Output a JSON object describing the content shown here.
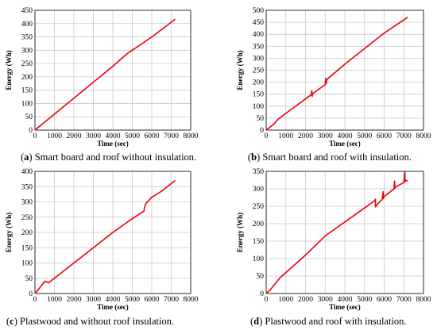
{
  "line_color": "#e8000b",
  "chart_data": [
    {
      "type": "line",
      "id": "a",
      "xlabel": "Time (sec)",
      "ylabel": "Energy (Wh)",
      "xlim": [
        0,
        8000
      ],
      "ylim": [
        0,
        450
      ],
      "xticks": [
        0,
        1000,
        2000,
        3000,
        4000,
        5000,
        6000,
        7000,
        8000
      ],
      "yticks": [
        0,
        50,
        100,
        150,
        200,
        250,
        300,
        350,
        400,
        450
      ],
      "grid": true,
      "series": [
        {
          "x": [
            0,
            500,
            1000,
            2000,
            3000,
            4000,
            4700,
            5000,
            6000,
            7000,
            7200
          ],
          "y": [
            0,
            30,
            60,
            120,
            180,
            240,
            285,
            300,
            350,
            405,
            417
          ]
        }
      ],
      "caption_letter": "a",
      "caption_text": "Smart board and roof without insulation."
    },
    {
      "type": "line",
      "id": "b",
      "xlabel": "Time (sec)",
      "ylabel": "Energy (Wh)",
      "xlim": [
        0,
        8000
      ],
      "ylim": [
        0,
        500
      ],
      "xticks": [
        0,
        1000,
        2000,
        3000,
        4000,
        5000,
        6000,
        7000,
        8000
      ],
      "yticks": [
        0,
        50,
        100,
        150,
        200,
        250,
        300,
        350,
        400,
        450,
        500
      ],
      "grid": true,
      "series": [
        {
          "x": [
            0,
            400,
            600,
            1000,
            2000,
            2300,
            2320,
            2340,
            2360,
            3000,
            3030,
            3060,
            3090,
            3500,
            4000,
            5000,
            6000,
            7000,
            7200
          ],
          "y": [
            0,
            25,
            45,
            70,
            130,
            148,
            165,
            140,
            152,
            190,
            215,
            195,
            212,
            240,
            275,
            340,
            405,
            460,
            472
          ]
        }
      ],
      "caption_letter": "b",
      "caption_text": "Smart board and roof with insulation."
    },
    {
      "type": "line",
      "id": "c",
      "xlabel": "Time (sec)",
      "ylabel": "Energy (Wh)",
      "xlim": [
        0,
        8000
      ],
      "ylim": [
        0,
        400
      ],
      "xticks": [
        0,
        1000,
        2000,
        3000,
        4000,
        5000,
        6000,
        7000,
        8000
      ],
      "yticks": [
        0,
        50,
        100,
        150,
        200,
        250,
        300,
        350,
        400
      ],
      "grid": true,
      "series": [
        {
          "x": [
            0,
            200,
            500,
            700,
            1000,
            2000,
            3000,
            4000,
            5000,
            5600,
            5620,
            5700,
            6000,
            6500,
            7000,
            7200
          ],
          "y": [
            0,
            15,
            40,
            35,
            50,
            100,
            150,
            200,
            245,
            270,
            280,
            295,
            315,
            335,
            360,
            370
          ]
        }
      ],
      "caption_letter": "c",
      "caption_text": "Plastwood and without roof insulation."
    },
    {
      "type": "line",
      "id": "d",
      "xlabel": "Time (sec)",
      "ylabel": "Energy (Wh)",
      "xlim": [
        0,
        8000
      ],
      "ylim": [
        0,
        350
      ],
      "xticks": [
        0,
        1000,
        2000,
        3000,
        4000,
        5000,
        6000,
        7000,
        8000
      ],
      "yticks": [
        0,
        50,
        100,
        150,
        200,
        250,
        300,
        350
      ],
      "grid": true,
      "series": [
        {
          "x": [
            0,
            200,
            700,
            1000,
            2000,
            3000,
            3500,
            4000,
            5000,
            5500,
            5550,
            5560,
            5600,
            5900,
            5950,
            5960,
            6000,
            6500,
            6530,
            6540,
            6600,
            7000,
            7050,
            7060,
            7100,
            7200
          ],
          "y": [
            0,
            10,
            45,
            60,
            110,
            165,
            185,
            205,
            245,
            265,
            270,
            248,
            252,
            270,
            292,
            272,
            278,
            300,
            322,
            302,
            306,
            318,
            350,
            320,
            324,
            322
          ]
        }
      ],
      "caption_letter": "d",
      "caption_text": "Plastwood and roof with insulation."
    }
  ]
}
